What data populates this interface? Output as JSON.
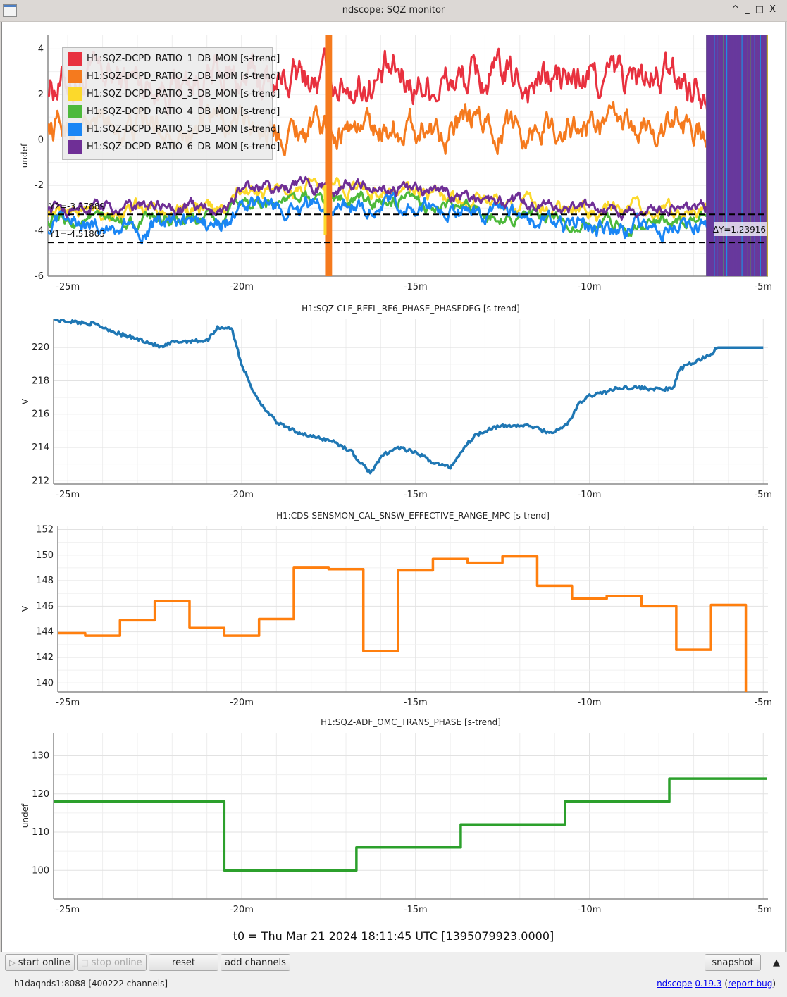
{
  "window": {
    "title": "ndscope: SQZ monitor",
    "controls": [
      "^",
      "_",
      "□",
      "X"
    ]
  },
  "t0_label": "t0 = Thu Mar 21 2024 18:11:45 UTC [1395079923.0000]",
  "toolbar": {
    "start_online": "start online",
    "stop_online": "stop online",
    "reset": "reset",
    "add_channels": "add channels",
    "snapshot": "snapshot",
    "start_icon": "▷",
    "stop_icon": "□",
    "collapse_icon": "▲"
  },
  "status": {
    "server": "h1daqnds1:8088  [400222 channels]",
    "app_link": "ndscope",
    "version_link": "0.19.3",
    "report_link": "report bug"
  },
  "chart_data": [
    {
      "type": "line",
      "title": "",
      "ylabel": "undef",
      "xlabel": "",
      "xlim_min": [
        -25.6,
        -4.9
      ],
      "ylim": [
        -6,
        4.6
      ],
      "yticks": [
        -6,
        -4,
        -2,
        0,
        2,
        4
      ],
      "xticks": [
        "-25m",
        "-20m",
        "-15m",
        "-10m",
        "-5m"
      ],
      "grid": true,
      "legend": "top-left",
      "cursors": {
        "Y1": "Y1=-4.51805",
        "Y2": "Y2=-3.27889",
        "dY": "ΔY=1.23916",
        "y1_value": -4.51805,
        "y2_value": -3.27889
      },
      "series": [
        {
          "name": "H1:SQZ-DCPD_RATIO_1_DB_MON [s-trend]",
          "color": "#e8313f",
          "mean": 2.6,
          "amp": 0.9,
          "approx_range": [
            0.5,
            4.3
          ]
        },
        {
          "name": "H1:SQZ-DCPD_RATIO_2_DB_MON [s-trend]",
          "color": "#f57a1e",
          "mean": 0.6,
          "amp": 0.7,
          "approx_range": [
            -1.0,
            2.2
          ]
        },
        {
          "name": "H1:SQZ-DCPD_RATIO_3_DB_MON [s-trend]",
          "color": "#fcd92b",
          "mean": -3.1,
          "amp": 0.35,
          "approx_range": [
            -3.8,
            -2.3
          ]
        },
        {
          "name": "H1:SQZ-DCPD_RATIO_4_DB_MON [s-trend]",
          "color": "#4db93b",
          "mean": -3.6,
          "amp": 0.3,
          "approx_range": [
            -4.3,
            -2.7
          ]
        },
        {
          "name": "H1:SQZ-DCPD_RATIO_5_DB_MON [s-trend]",
          "color": "#1a86f5",
          "mean": -3.8,
          "amp": 0.4,
          "approx_range": [
            -4.9,
            -2.4
          ]
        },
        {
          "name": "H1:SQZ-DCPD_RATIO_6_DB_MON [s-trend]",
          "color": "#6f2f96",
          "mean": -3.0,
          "amp": 0.3,
          "approx_range": [
            -3.9,
            -1.5
          ]
        }
      ],
      "profiles": {
        "x_min": [
          -25.6,
          -24,
          -20.5,
          -20,
          -17,
          -14,
          -11,
          -9,
          -6.5
        ],
        "low_group_offset": [
          0,
          0,
          0,
          0.8,
          1.0,
          0.6,
          0.0,
          -0.1,
          0
        ]
      },
      "glitch_regions_min": [
        [
          -17.6,
          -17.4
        ],
        [
          -6.6,
          -5.2
        ]
      ]
    },
    {
      "type": "line",
      "title": "H1:SQZ-CLF_REFL_RF6_PHASE_PHASEDEG [s-trend]",
      "ylabel": "V",
      "xlabel": "",
      "ylim": [
        211.8,
        221.7
      ],
      "yticks": [
        212,
        214,
        216,
        218,
        220
      ],
      "xticks": [
        "-25m",
        "-20m",
        "-15m",
        "-10m",
        "-5m"
      ],
      "grid": true,
      "series": [
        {
          "name": "H1:SQZ-CLF_REFL_RF6_PHASE_PHASEDEG",
          "color": "#1f77b4",
          "x_min": [
            -25.6,
            -25.5,
            -24.2,
            -23.5,
            -22.8,
            -22.3,
            -22.0,
            -21.5,
            -21.0,
            -20.7,
            -20.3,
            -20.0,
            -19.7,
            -19.4,
            -19.0,
            -18.5,
            -17.9,
            -17.4,
            -16.8,
            -16.7,
            -16.3,
            -15.9,
            -15.5,
            -14.9,
            -14.5,
            -14.0,
            -13.6,
            -13.3,
            -12.8,
            -12.3,
            -11.7,
            -11.2,
            -10.9,
            -10.6,
            -10.3,
            -10.0,
            -9.6,
            -9.1,
            -8.6,
            -8.1,
            -7.9,
            -7.6,
            -7.4,
            -7.0,
            -6.5,
            -6.3,
            -5.0
          ],
          "y": [
            221.5,
            221.7,
            221.4,
            220.8,
            220.4,
            220.0,
            220.3,
            220.4,
            220.4,
            221.2,
            221.2,
            219.0,
            217.5,
            216.5,
            215.5,
            215.0,
            214.6,
            214.4,
            213.7,
            213.3,
            212.5,
            213.6,
            214.0,
            213.6,
            213.1,
            212.8,
            214.0,
            214.7,
            215.2,
            215.3,
            215.3,
            214.9,
            215.0,
            215.5,
            216.6,
            217.1,
            217.3,
            217.6,
            217.6,
            217.5,
            217.5,
            217.5,
            218.7,
            219.1,
            219.6,
            220.0,
            220.0
          ]
        }
      ]
    },
    {
      "type": "line",
      "title": "H1:CDS-SENSMON_CAL_SNSW_EFFECTIVE_RANGE_MPC [s-trend]",
      "ylabel": "V",
      "xlabel": "",
      "ylim": [
        139.3,
        152.3
      ],
      "yticks": [
        140,
        142,
        144,
        146,
        148,
        150,
        152
      ],
      "xticks": [
        "-25m",
        "-20m",
        "-15m",
        "-10m",
        "-5m"
      ],
      "grid": true,
      "step": true,
      "series": [
        {
          "name": "H1:CDS-SENSMON_CAL_SNSW_EFFECTIVE_RANGE_MPC",
          "color": "#ff7f0e",
          "x_min": [
            -25.3,
            -24.5,
            -23.5,
            -22.5,
            -21.5,
            -20.5,
            -19.5,
            -18.5,
            -17.5,
            -16.5,
            -15.5,
            -14.5,
            -13.5,
            -12.5,
            -11.5,
            -10.5,
            -9.5,
            -8.5,
            -7.5,
            -6.5,
            -5.5
          ],
          "y": [
            143.9,
            143.7,
            144.9,
            146.4,
            144.3,
            143.7,
            145.0,
            149.0,
            148.9,
            142.5,
            148.8,
            149.7,
            149.4,
            149.9,
            147.6,
            146.6,
            146.8,
            146.0,
            142.6,
            146.1,
            139.3
          ]
        }
      ]
    },
    {
      "type": "line",
      "title": "H1:SQZ-ADF_OMC_TRANS_PHASE [s-trend]",
      "ylabel": "undef",
      "xlabel": "",
      "ylim": [
        92.5,
        136
      ],
      "yticks": [
        100,
        110,
        120,
        130
      ],
      "xticks": [
        "-25m",
        "-20m",
        "-15m",
        "-10m",
        "-5m"
      ],
      "grid": true,
      "step": true,
      "series": [
        {
          "name": "H1:SQZ-ADF_OMC_TRANS_PHASE",
          "color": "#2ca02c",
          "x_min": [
            -25.6,
            -20.5,
            -16.7,
            -13.7,
            -10.7,
            -7.7,
            -4.9
          ],
          "y": [
            118,
            100,
            106,
            112,
            118,
            124,
            124
          ]
        }
      ]
    }
  ]
}
